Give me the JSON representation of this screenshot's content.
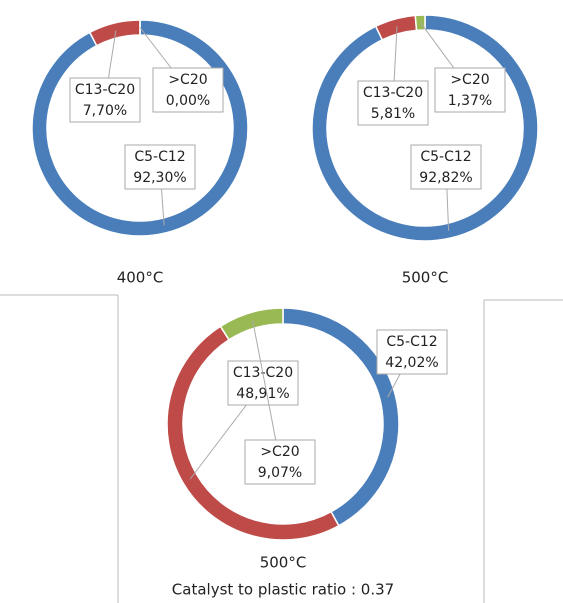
{
  "chart_data": [
    {
      "type": "pie",
      "title": "400°C",
      "categories": [
        "C5-C12",
        "C13-C20",
        ">C20"
      ],
      "values": [
        92.3,
        7.7,
        0.0
      ],
      "value_labels": [
        "92,30%",
        "7,70%",
        "0,00%"
      ],
      "colors": [
        "#4a7ebb",
        "#be4b48",
        "#98b954"
      ]
    },
    {
      "type": "pie",
      "title": "500°C",
      "categories": [
        "C5-C12",
        "C13-C20",
        ">C20"
      ],
      "values": [
        92.82,
        5.81,
        1.37
      ],
      "value_labels": [
        "92,82%",
        "5,81%",
        "1,37%"
      ],
      "colors": [
        "#4a7ebb",
        "#be4b48",
        "#98b954"
      ]
    },
    {
      "type": "pie",
      "title": "500°C",
      "subtitle": "Catalyst to plastic ratio : 0.37",
      "categories": [
        "C5-C12",
        "C13-C20",
        ">C20"
      ],
      "values": [
        42.02,
        48.91,
        9.07
      ],
      "value_labels": [
        "42,02%",
        "48,91%",
        "9,07%"
      ],
      "colors": [
        "#4a7ebb",
        "#be4b48",
        "#98b954"
      ]
    }
  ]
}
